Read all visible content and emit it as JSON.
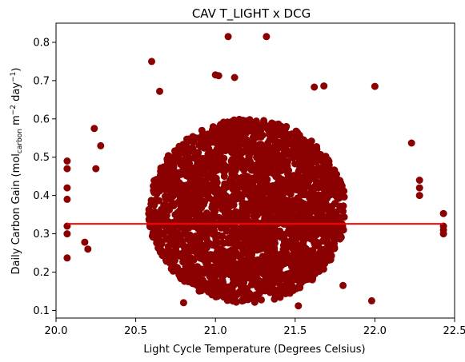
{
  "chart_data": {
    "type": "scatter",
    "title": "CAV T_LIGHT x DCG",
    "xlabel": "Light Cycle Temperature (Degrees Celsius)",
    "ylabel_prefix": "Daily Carbon Gain (mol",
    "ylabel_sub": "carbon",
    "ylabel_mid": " m",
    "ylabel_sup1": "−2",
    "ylabel_mid2": " day",
    "ylabel_sup2": "−1",
    "ylabel_suffix": ")",
    "xlim": [
      20.0,
      22.5
    ],
    "ylim": [
      0.08,
      0.85
    ],
    "xticks": [
      20.0,
      20.5,
      21.0,
      21.5,
      22.0,
      22.5
    ],
    "xtick_labels": [
      "20.0",
      "20.5",
      "21.0",
      "21.5",
      "22.0",
      "22.5"
    ],
    "yticks": [
      0.1,
      0.2,
      0.3,
      0.4,
      0.5,
      0.6,
      0.7,
      0.8
    ],
    "ytick_labels": [
      "0.1",
      "0.2",
      "0.3",
      "0.4",
      "0.5",
      "0.6",
      "0.7",
      "0.8"
    ],
    "grid": false,
    "point_color": "#8b0000",
    "trend_color": "#ff0000",
    "cloud_center": [
      21.2,
      0.36
    ],
    "cloud_radius": [
      0.62,
      0.24
    ],
    "trend_line": {
      "x": [
        20.07,
        22.43
      ],
      "y": [
        0.326,
        0.326
      ]
    },
    "outliers": [
      [
        21.08,
        0.815
      ],
      [
        21.32,
        0.815
      ],
      [
        20.6,
        0.75
      ],
      [
        21.0,
        0.715
      ],
      [
        21.02,
        0.713
      ],
      [
        21.12,
        0.708
      ],
      [
        20.65,
        0.672
      ],
      [
        21.62,
        0.683
      ],
      [
        21.68,
        0.686
      ],
      [
        22.0,
        0.685
      ],
      [
        20.07,
        0.49
      ],
      [
        20.07,
        0.47
      ],
      [
        20.07,
        0.42
      ],
      [
        20.07,
        0.39
      ],
      [
        20.07,
        0.32
      ],
      [
        20.07,
        0.3
      ],
      [
        20.07,
        0.237
      ],
      [
        20.18,
        0.278
      ],
      [
        20.2,
        0.26
      ],
      [
        20.24,
        0.575
      ],
      [
        20.25,
        0.47
      ],
      [
        20.28,
        0.53
      ],
      [
        22.43,
        0.353
      ],
      [
        22.43,
        0.32
      ],
      [
        22.43,
        0.31
      ],
      [
        22.43,
        0.3
      ],
      [
        22.28,
        0.44
      ],
      [
        22.28,
        0.42
      ],
      [
        22.28,
        0.4
      ],
      [
        22.23,
        0.537
      ],
      [
        21.98,
        0.125
      ],
      [
        21.52,
        0.112
      ],
      [
        21.8,
        0.165
      ],
      [
        20.8,
        0.12
      ]
    ]
  }
}
